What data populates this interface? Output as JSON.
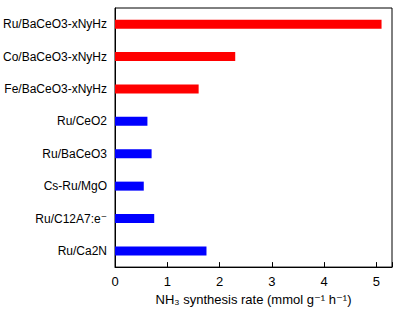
{
  "chart_data": {
    "type": "bar",
    "orientation": "horizontal",
    "x_label": "NH₃ synthesis rate (mmol g⁻¹ h⁻¹)",
    "categories": [
      "Ru/BaCeO3-xNyHz",
      "Co/BaCeO3-xNyHz",
      "Fe/BaCeO3-xNyHz",
      "Ru/CeO2",
      "Ru/BaCeO3",
      "Cs-Ru/MgO",
      "Ru/C12A7:e⁻",
      "Ru/Ca2N"
    ],
    "values": [
      5.1,
      2.3,
      1.6,
      0.62,
      0.7,
      0.55,
      0.75,
      1.75
    ],
    "colors": [
      "#ff0000",
      "#ff0000",
      "#ff0000",
      "#0000ff",
      "#0000ff",
      "#0000ff",
      "#0000ff",
      "#0000ff"
    ],
    "xlim": [
      0,
      5.3
    ],
    "xticks": [
      0,
      1,
      2,
      3,
      4,
      5
    ],
    "grid": false
  }
}
